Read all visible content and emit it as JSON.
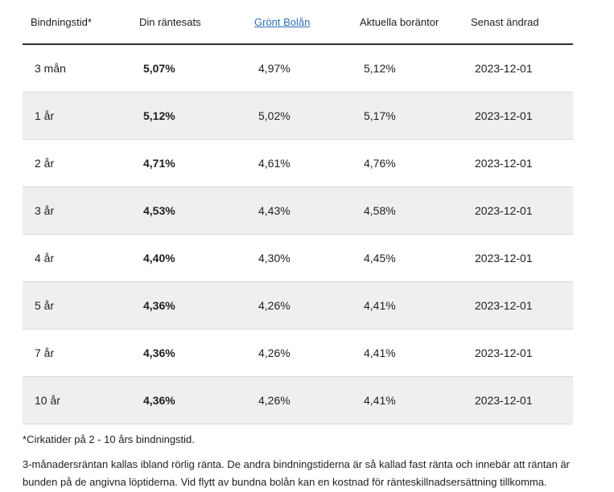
{
  "rates_table": {
    "headers": {
      "term": "Bindningstid*",
      "your_rate": "Din räntesats",
      "green_loan": "Grönt Bolån",
      "current_rates": "Aktuella boräntor",
      "last_changed": "Senast ändrad"
    },
    "rows": [
      {
        "term": "3 mån",
        "your_rate": "5,07%",
        "green_loan": "4,97%",
        "current_rates": "5,12%",
        "last_changed": "2023-12-01"
      },
      {
        "term": "1 år",
        "your_rate": "5,12%",
        "green_loan": "5,02%",
        "current_rates": "5,17%",
        "last_changed": "2023-12-01"
      },
      {
        "term": "2 år",
        "your_rate": "4,71%",
        "green_loan": "4,61%",
        "current_rates": "4,76%",
        "last_changed": "2023-12-01"
      },
      {
        "term": "3 år",
        "your_rate": "4,53%",
        "green_loan": "4,43%",
        "current_rates": "4,58%",
        "last_changed": "2023-12-01"
      },
      {
        "term": "4 år",
        "your_rate": "4,40%",
        "green_loan": "4,30%",
        "current_rates": "4,45%",
        "last_changed": "2023-12-01"
      },
      {
        "term": "5 år",
        "your_rate": "4,36%",
        "green_loan": "4,26%",
        "current_rates": "4,41%",
        "last_changed": "2023-12-01"
      },
      {
        "term": "7 år",
        "your_rate": "4,36%",
        "green_loan": "4,26%",
        "current_rates": "4,41%",
        "last_changed": "2023-12-01"
      },
      {
        "term": "10 år",
        "your_rate": "4,36%",
        "green_loan": "4,26%",
        "current_rates": "4,41%",
        "last_changed": "2023-12-01"
      }
    ]
  },
  "footnotes": {
    "circa": "*Cirkatider på 2 - 10 års bindningstid.",
    "info": "3-månadersräntan kallas ibland rörlig ränta. De andra bindningstiderna är så kallad fast ränta och innebär att räntan är bunden på de angivna löptiderna. Vid flytt av bundna bolån kan en kostnad för ränteskillnadsersättning tillkomma."
  },
  "colors": {
    "link": "#2d70b8",
    "alt_row_bg": "#efefef",
    "row_divider": "#d9d9d9",
    "header_rule": "#2e2e2e",
    "text": "#1f1f1f"
  }
}
